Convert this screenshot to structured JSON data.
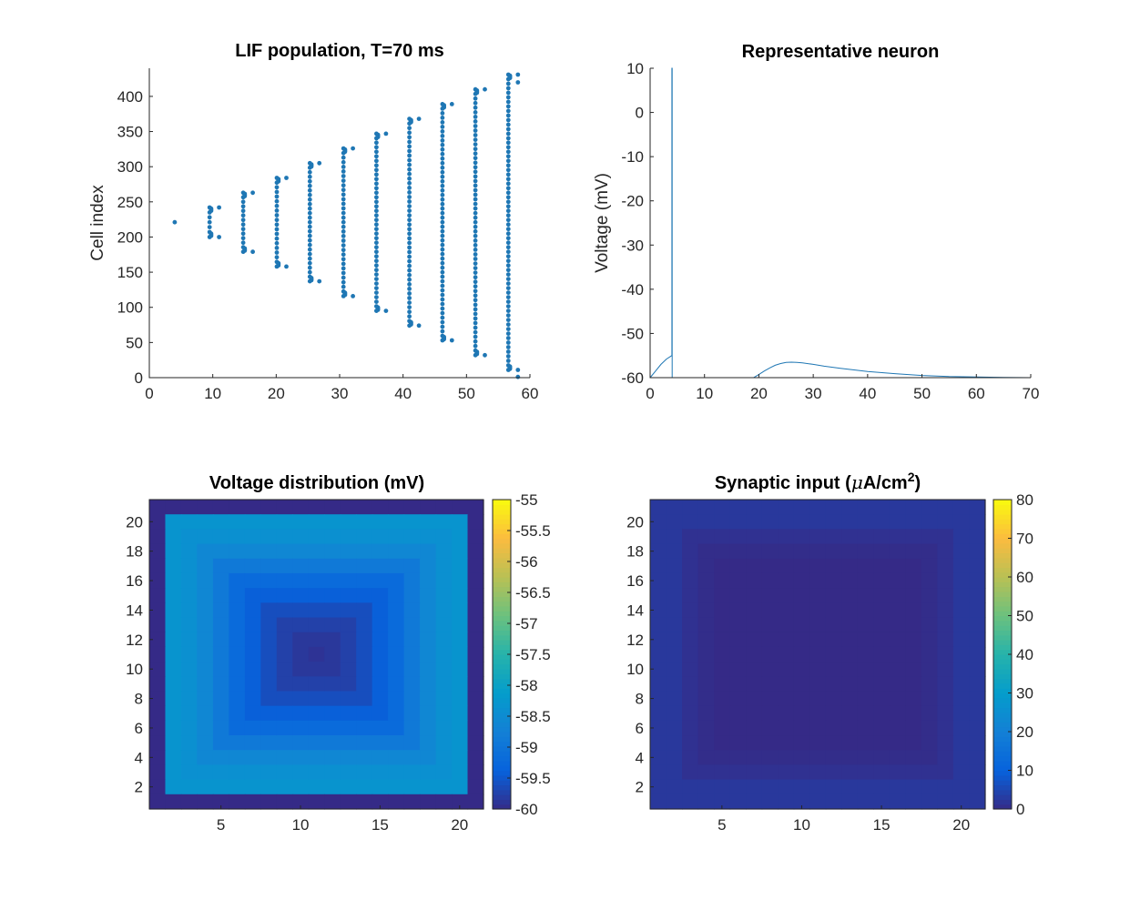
{
  "chart_data": [
    {
      "type": "scatter",
      "title": "LIF population, T=70 ms",
      "xlabel": "",
      "ylabel": "Cell index",
      "xlim": [
        0,
        60
      ],
      "ylim": [
        0,
        440
      ],
      "xticks": [
        "0",
        "10",
        "20",
        "30",
        "40",
        "50",
        "60"
      ],
      "yticks": [
        "0",
        "50",
        "100",
        "150",
        "200",
        "250",
        "300",
        "350",
        "400"
      ],
      "color": "#1f77b4",
      "waves": [
        {
          "t": 4.0,
          "min": 221,
          "max": 221,
          "edge_t": null,
          "edge_lo": [],
          "edge_hi": []
        },
        {
          "t": 9.5,
          "min": 200,
          "max": 242,
          "edge_t": 11.0,
          "edge_lo": [
            200
          ],
          "edge_hi": [
            242
          ]
        },
        {
          "t": 14.8,
          "min": 179,
          "max": 263,
          "edge_t": 16.3,
          "edge_lo": [
            179
          ],
          "edge_hi": [
            263
          ]
        },
        {
          "t": 20.1,
          "min": 158,
          "max": 284,
          "edge_t": 21.6,
          "edge_lo": [
            158
          ],
          "edge_hi": [
            284
          ]
        },
        {
          "t": 25.3,
          "min": 137,
          "max": 305,
          "edge_t": 26.8,
          "edge_lo": [
            137
          ],
          "edge_hi": [
            305
          ]
        },
        {
          "t": 30.6,
          "min": 116,
          "max": 326,
          "edge_t": 32.1,
          "edge_lo": [
            116
          ],
          "edge_hi": [
            326
          ]
        },
        {
          "t": 35.8,
          "min": 95,
          "max": 347,
          "edge_t": 37.3,
          "edge_lo": [
            95
          ],
          "edge_hi": [
            347
          ]
        },
        {
          "t": 41.0,
          "min": 74,
          "max": 368,
          "edge_t": 42.5,
          "edge_lo": [
            74
          ],
          "edge_hi": [
            368
          ]
        },
        {
          "t": 46.2,
          "min": 53,
          "max": 389,
          "edge_t": 47.7,
          "edge_lo": [
            53
          ],
          "edge_hi": [
            389
          ]
        },
        {
          "t": 51.4,
          "min": 32,
          "max": 410,
          "edge_t": 52.9,
          "edge_lo": [
            32
          ],
          "edge_hi": [
            410
          ]
        },
        {
          "t": 56.6,
          "min": 11,
          "max": 431,
          "edge_t": 58.1,
          "edge_lo": [
            11,
            1
          ],
          "edge_hi": [
            431,
            420
          ]
        }
      ]
    },
    {
      "type": "line",
      "title": "Representative neuron",
      "xlabel": "",
      "ylabel": "Voltage (mV)",
      "xlim": [
        0,
        70
      ],
      "ylim": [
        -60,
        10
      ],
      "xticks": [
        "0",
        "10",
        "20",
        "30",
        "40",
        "50",
        "60",
        "70"
      ],
      "yticks": [
        "-60",
        "-50",
        "-40",
        "-30",
        "-20",
        "-10",
        "0",
        "10"
      ],
      "color": "#1f77b4",
      "series": [
        {
          "x": [
            0,
            1,
            2,
            3,
            4.0,
            4.0,
            4.05,
            4.05,
            10,
            15,
            19,
            20,
            21,
            22,
            23,
            24,
            25,
            26,
            27,
            28,
            30,
            32,
            35,
            40,
            45,
            50,
            55,
            60,
            65,
            70
          ],
          "y": [
            -60,
            -58.5,
            -57,
            -55.8,
            -55,
            10,
            10,
            -60,
            -60,
            -60,
            -60,
            -59.3,
            -58.5,
            -57.8,
            -57.2,
            -56.8,
            -56.55,
            -56.5,
            -56.55,
            -56.65,
            -57,
            -57.4,
            -57.9,
            -58.6,
            -59.1,
            -59.5,
            -59.75,
            -59.85,
            -59.95,
            -60
          ]
        }
      ]
    },
    {
      "type": "heatmap",
      "title": "Voltage distribution (mV)",
      "xlabel": "",
      "ylabel": "",
      "grid_size": 21,
      "xticks": [
        "5",
        "10",
        "15",
        "20"
      ],
      "xtick_values": [
        5,
        10,
        15,
        20
      ],
      "yticks": [
        "2",
        "4",
        "6",
        "8",
        "10",
        "12",
        "14",
        "16",
        "18",
        "20"
      ],
      "ytick_values": [
        2,
        4,
        6,
        8,
        10,
        12,
        14,
        16,
        18,
        20
      ],
      "clim": [
        -60,
        -55
      ],
      "colorbar_ticks": [
        "-55",
        "-55.5",
        "-56",
        "-56.5",
        "-57",
        "-57.5",
        "-58",
        "-58.5",
        "-59",
        "-59.5",
        "-60"
      ],
      "colorbar_values": [
        -55,
        -55.5,
        -56,
        -56.5,
        -57,
        -57.5,
        -58,
        -58.5,
        -59,
        -59.5,
        -60
      ],
      "ring_values": [
        -60,
        -58.3,
        -58.4,
        -58.6,
        -58.9,
        -59.2,
        -59.4,
        -59.6,
        -59.75,
        -59.85,
        -59.9
      ]
    },
    {
      "type": "heatmap",
      "title_prefix": "Synaptic input (",
      "title_mu": "μ",
      "title_unit": "A/cm",
      "title_sup": "2",
      "title_suffix": ")",
      "xlabel": "",
      "ylabel": "",
      "grid_size": 21,
      "xticks": [
        "5",
        "10",
        "15",
        "20"
      ],
      "xtick_values": [
        5,
        10,
        15,
        20
      ],
      "yticks": [
        "2",
        "4",
        "6",
        "8",
        "10",
        "12",
        "14",
        "16",
        "18",
        "20"
      ],
      "ytick_values": [
        2,
        4,
        6,
        8,
        10,
        12,
        14,
        16,
        18,
        20
      ],
      "clim": [
        0,
        80
      ],
      "colorbar_ticks": [
        "80",
        "70",
        "60",
        "50",
        "40",
        "30",
        "20",
        "10",
        "0"
      ],
      "colorbar_values": [
        80,
        70,
        60,
        50,
        40,
        30,
        20,
        10,
        0
      ],
      "ring_values": [
        2.5,
        2.5,
        1.2,
        0.4,
        0,
        0,
        0,
        0,
        0,
        0,
        0
      ]
    }
  ]
}
